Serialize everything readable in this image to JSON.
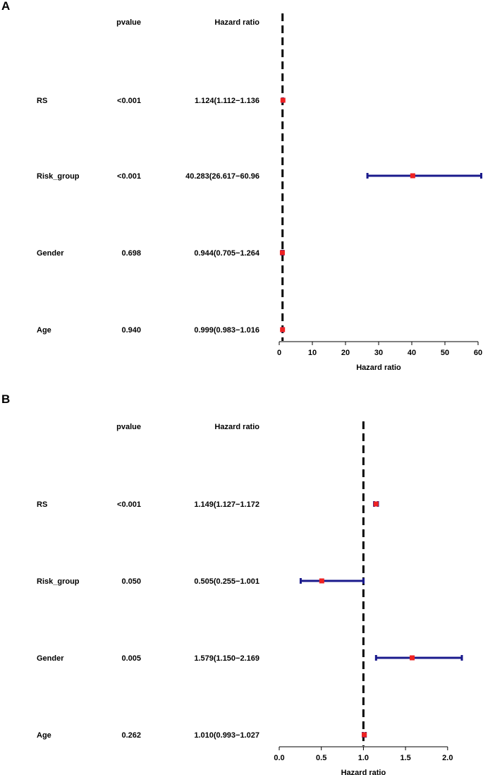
{
  "chart_data": [
    {
      "panel": "A",
      "type": "forest",
      "columns": {
        "pvalue": "pvalue",
        "hr": "Hazard ratio"
      },
      "rows": [
        {
          "name": "RS",
          "pvalue": "<0.001",
          "hr_text": "1.124(1.112−1.136",
          "hr": 1.124,
          "low": 1.112,
          "high": 1.136
        },
        {
          "name": "Risk_group",
          "pvalue": "<0.001",
          "hr_text": "40.283(26.617−60.96",
          "hr": 40.283,
          "low": 26.617,
          "high": 60.96
        },
        {
          "name": "Gender",
          "pvalue": "0.698",
          "hr_text": "0.944(0.705−1.264",
          "hr": 0.944,
          "low": 0.705,
          "high": 1.264
        },
        {
          "name": "Age",
          "pvalue": "0.940",
          "hr_text": "0.999(0.983−1.016",
          "hr": 0.999,
          "low": 0.983,
          "high": 1.016
        }
      ],
      "reference_line": 1,
      "xlim": [
        0,
        60
      ],
      "ticks": [
        0,
        10,
        20,
        30,
        40,
        50,
        60
      ],
      "tick_labels": [
        "0",
        "10",
        "20",
        "30",
        "40",
        "50",
        "60"
      ],
      "xlabel": "Hazard ratio"
    },
    {
      "panel": "B",
      "type": "forest",
      "columns": {
        "pvalue": "pvalue",
        "hr": "Hazard ratio"
      },
      "rows": [
        {
          "name": "RS",
          "pvalue": "<0.001",
          "hr_text": "1.149(1.127−1.172",
          "hr": 1.149,
          "low": 1.127,
          "high": 1.172
        },
        {
          "name": "Risk_group",
          "pvalue": "0.050",
          "hr_text": "0.505(0.255−1.001",
          "hr": 0.505,
          "low": 0.255,
          "high": 1.001
        },
        {
          "name": "Gender",
          "pvalue": "0.005",
          "hr_text": "1.579(1.150−2.169",
          "hr": 1.579,
          "low": 1.15,
          "high": 2.169
        },
        {
          "name": "Age",
          "pvalue": "0.262",
          "hr_text": "1.010(0.993−1.027",
          "hr": 1.01,
          "low": 0.993,
          "high": 1.027
        }
      ],
      "reference_line": 1,
      "xlim": [
        0,
        2.169
      ],
      "ticks": [
        0,
        0.5,
        1,
        1.5,
        2
      ],
      "tick_labels": [
        "0.0",
        "0.5",
        "1.0",
        "1.5",
        "2.0"
      ],
      "xlabel": "Hazard ratio"
    }
  ],
  "colors": {
    "ci": "#1a1a8c",
    "point": "#ee2222",
    "ref": "#000000",
    "text": "#000000"
  }
}
